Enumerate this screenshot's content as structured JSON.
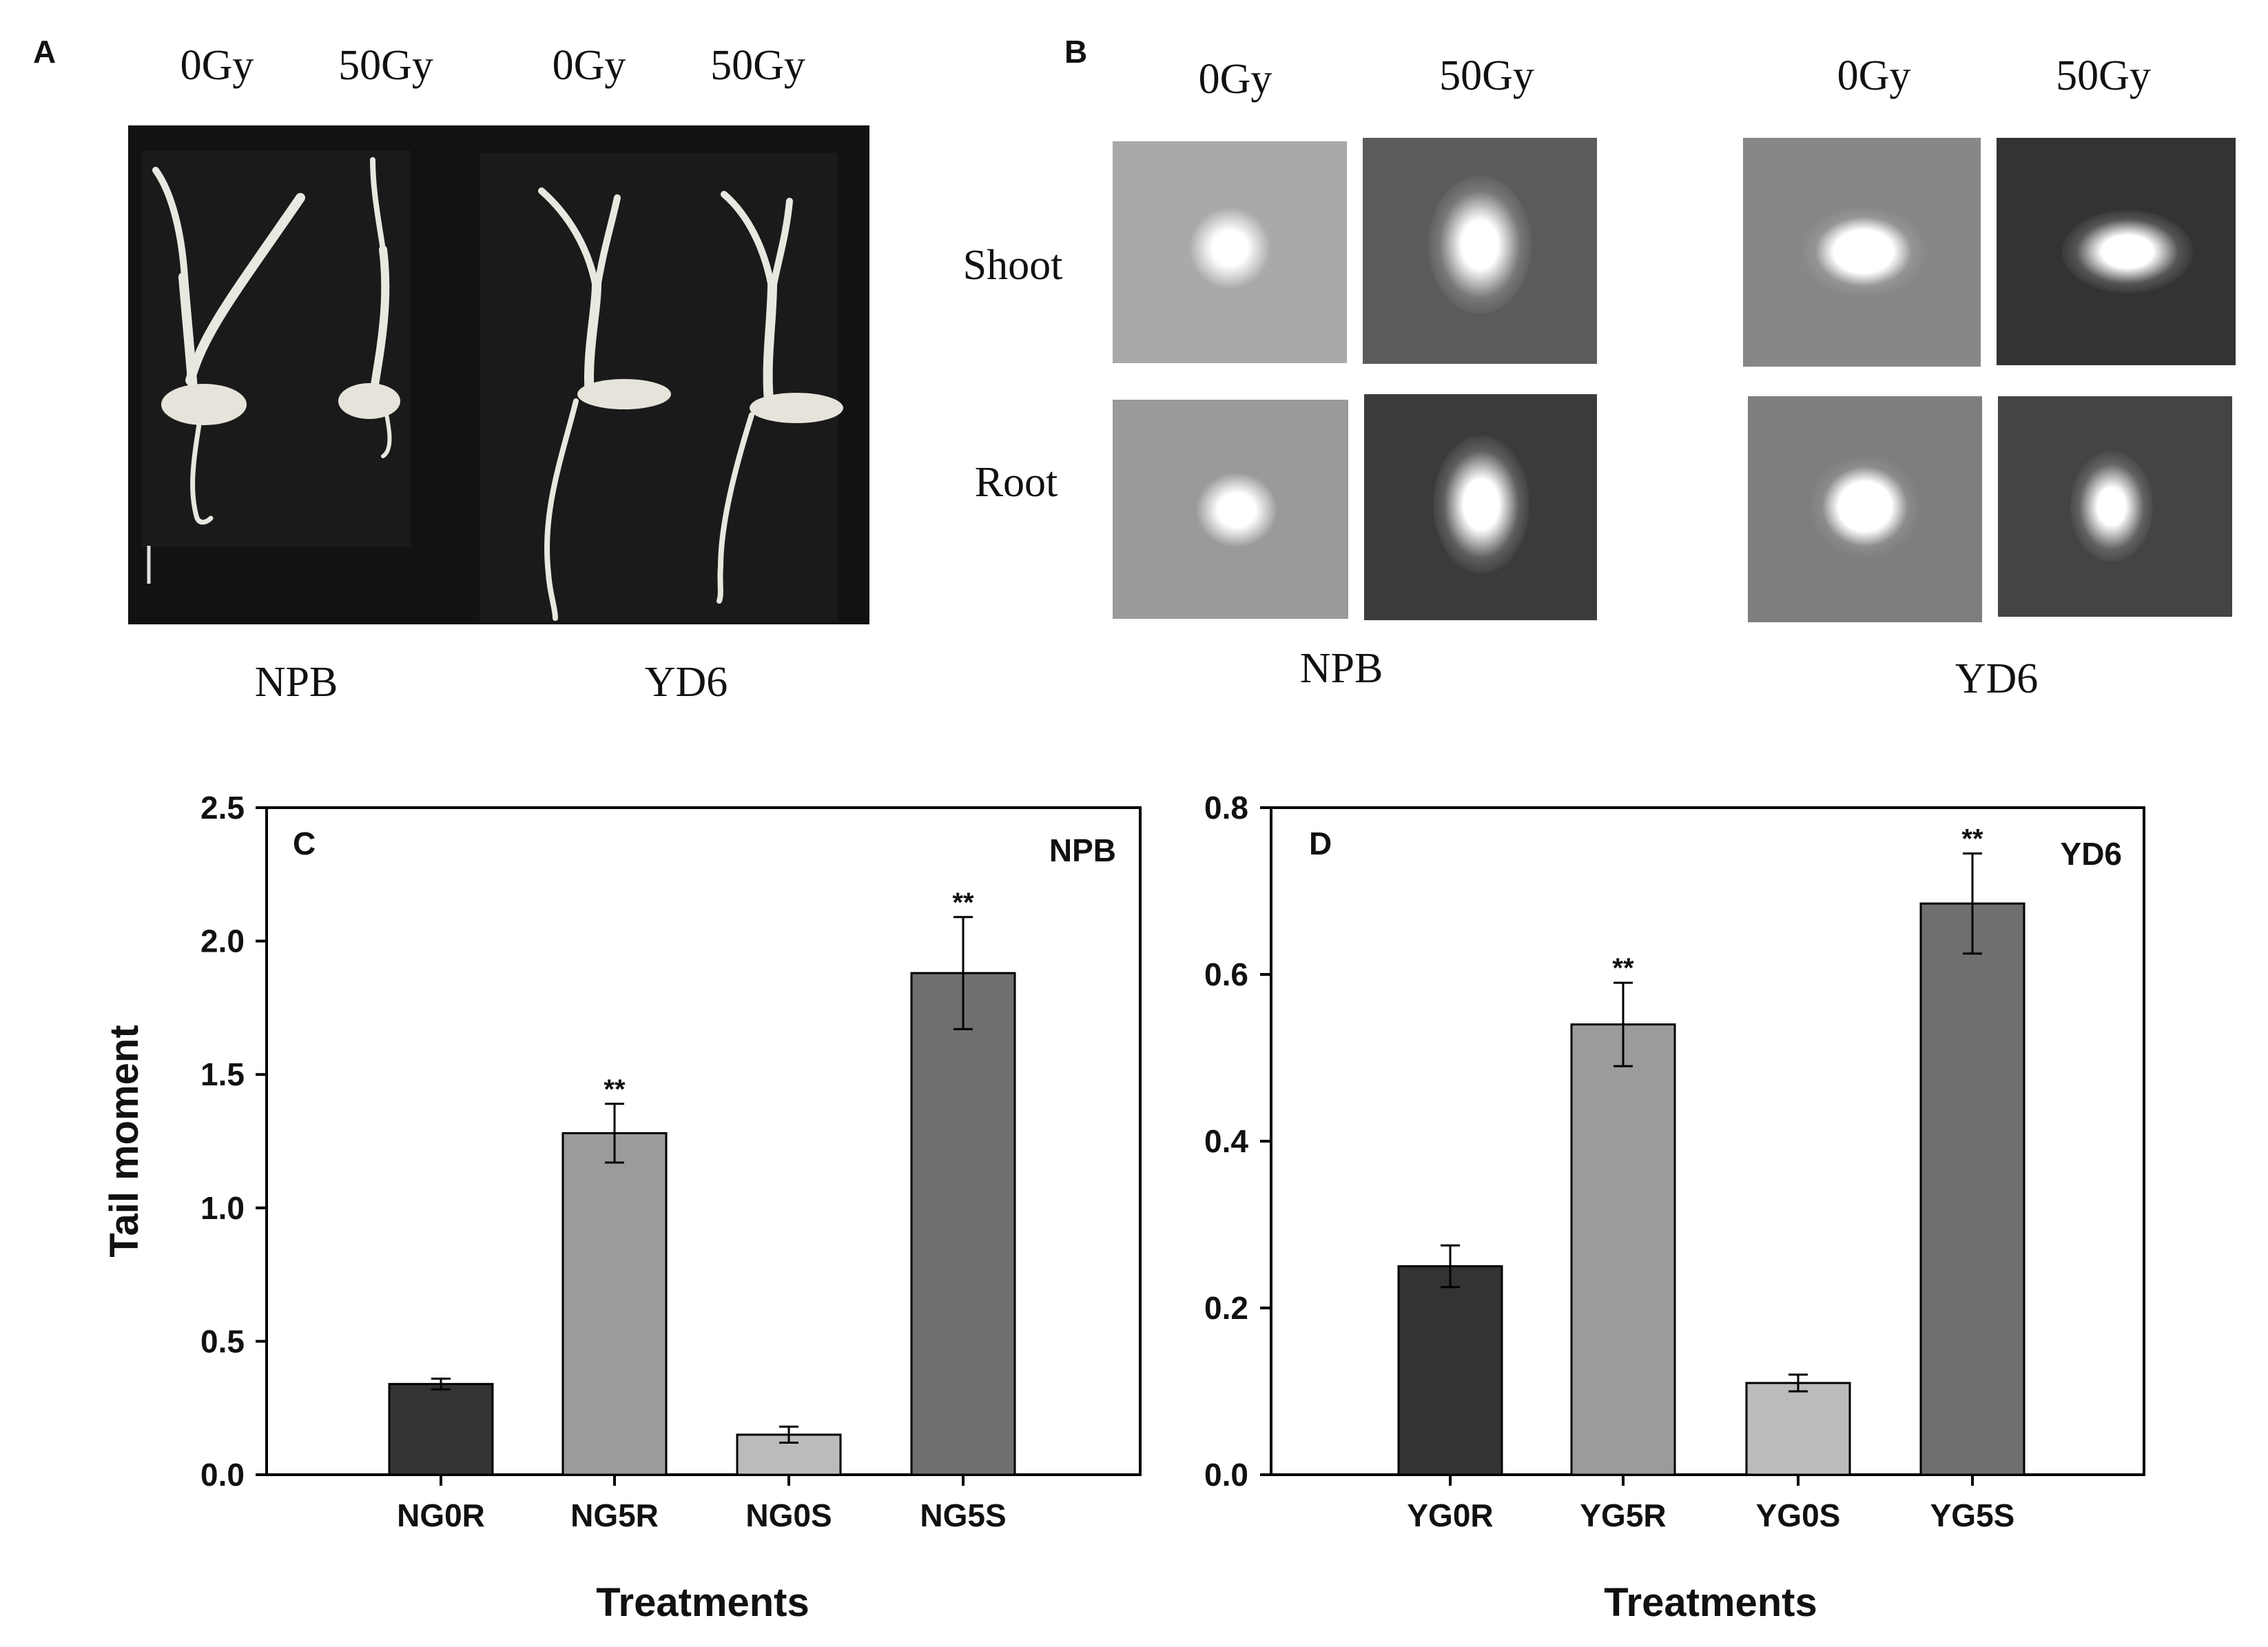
{
  "panel_a": {
    "letter": "A",
    "dose_labels": [
      "0Gy",
      "50Gy",
      "0Gy",
      "50Gy"
    ],
    "variety_labels": [
      "NPB",
      "YD6"
    ]
  },
  "panel_b": {
    "letter": "B",
    "dose_labels": [
      "0Gy",
      "50Gy",
      "0Gy",
      "50Gy"
    ],
    "row_labels": [
      "Shoot",
      "Root"
    ],
    "variety_labels": [
      "NPB",
      "YD6"
    ]
  },
  "chart_data": [
    {
      "panel": "C",
      "type": "bar",
      "title": "NPB",
      "xlabel": "Treatments",
      "ylabel": "Tail moment",
      "ylim": [
        0,
        2.5
      ],
      "yticks": [
        "0.0",
        "0.5",
        "1.0",
        "1.5",
        "2.0",
        "2.5"
      ],
      "categories": [
        "NG0R",
        "NG5R",
        "NG0S",
        "NG5S"
      ],
      "values": [
        0.34,
        1.28,
        0.15,
        1.88
      ],
      "errors": [
        0.02,
        0.11,
        0.03,
        0.21
      ],
      "significance": [
        "",
        "**",
        "",
        "**"
      ],
      "colors": [
        "#333333",
        "#9a9c9c",
        "#b9bcbb",
        "#6f6f6f"
      ]
    },
    {
      "panel": "D",
      "type": "bar",
      "title": "YD6",
      "xlabel": "Treatments",
      "ylabel": "",
      "ylim": [
        0,
        0.8
      ],
      "yticks": [
        "0.0",
        "0.2",
        "0.4",
        "0.6",
        "0.8"
      ],
      "categories": [
        "YG0R",
        "YG5R",
        "YG0S",
        "YG5S"
      ],
      "values": [
        0.25,
        0.54,
        0.11,
        0.685
      ],
      "errors": [
        0.025,
        0.05,
        0.01,
        0.06
      ],
      "significance": [
        "",
        "**",
        "",
        "**"
      ],
      "colors": [
        "#333333",
        "#9a9c9c",
        "#b9bcbb",
        "#6f6f6f"
      ]
    }
  ]
}
